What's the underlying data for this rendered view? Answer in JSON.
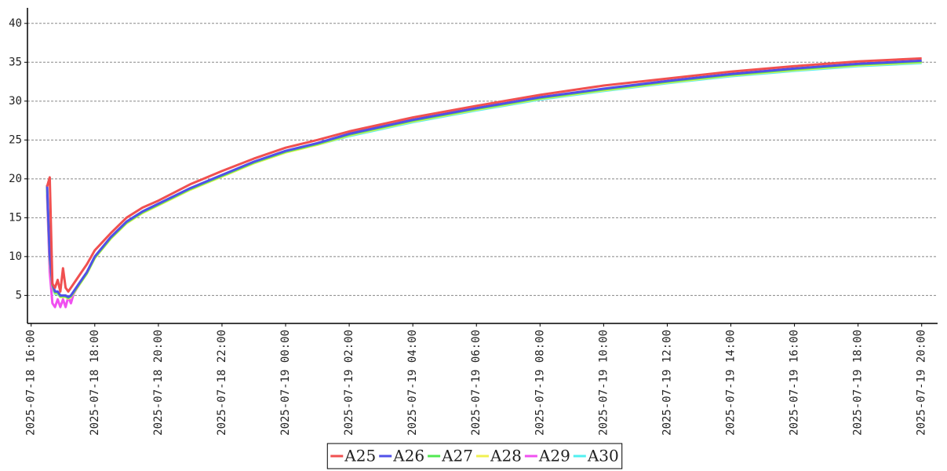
{
  "chart_data": {
    "type": "line",
    "x": [
      "2025-07-18 16:30",
      "2025-07-18 16:35",
      "2025-07-18 16:40",
      "2025-07-18 16:45",
      "2025-07-18 16:50",
      "2025-07-18 16:55",
      "2025-07-18 17:00",
      "2025-07-18 17:05",
      "2025-07-18 17:10",
      "2025-07-18 17:15",
      "2025-07-18 17:20",
      "2025-07-18 17:30",
      "2025-07-18 17:45",
      "2025-07-18 18:00",
      "2025-07-18 18:30",
      "2025-07-18 19:00",
      "2025-07-18 19:30",
      "2025-07-18 20:00",
      "2025-07-18 21:00",
      "2025-07-18 22:00",
      "2025-07-18 23:00",
      "2025-07-19 00:00",
      "2025-07-19 01:00",
      "2025-07-19 02:00",
      "2025-07-19 03:00",
      "2025-07-19 04:00",
      "2025-07-19 06:00",
      "2025-07-19 08:00",
      "2025-07-19 10:00",
      "2025-07-19 12:00",
      "2025-07-19 14:00",
      "2025-07-19 16:00",
      "2025-07-19 18:00",
      "2025-07-19 20:00"
    ],
    "series": [
      {
        "name": "A25",
        "color": "#f05050",
        "values": [
          19,
          20.2,
          6.5,
          6,
          7,
          5.5,
          8.5,
          6,
          5.5,
          6,
          6.5,
          7.5,
          9,
          10.8,
          13,
          15,
          16.3,
          17.2,
          19.3,
          21,
          22.6,
          24,
          25,
          26.1,
          27,
          27.9,
          29.4,
          30.8,
          32,
          32.9,
          33.8,
          34.5,
          35.1,
          35.5
        ]
      },
      {
        "name": "A26",
        "color": "#5050e8",
        "values": [
          19.2,
          10,
          6.5,
          5.5,
          5.5,
          5,
          5,
          5,
          4.8,
          5,
          5.5,
          6.5,
          8,
          10,
          12.5,
          14.5,
          15.8,
          16.8,
          18.8,
          20.5,
          22.2,
          23.6,
          24.6,
          25.8,
          26.7,
          27.6,
          29.1,
          30.5,
          31.6,
          32.6,
          33.5,
          34.2,
          34.8,
          35.2
        ]
      },
      {
        "name": "A27",
        "color": "#50e850",
        "values": [
          19,
          9.8,
          6.3,
          5.4,
          5.4,
          4.9,
          4.9,
          4.9,
          4.7,
          4.9,
          5.4,
          6.4,
          7.9,
          9.9,
          12.4,
          14.4,
          15.7,
          16.7,
          18.7,
          20.4,
          22.1,
          23.5,
          24.5,
          25.7,
          26.6,
          27.5,
          29,
          30.4,
          31.5,
          32.5,
          33.4,
          34.1,
          34.7,
          35.1
        ]
      },
      {
        "name": "A28",
        "color": "#f0f050",
        "values": [
          18.8,
          9.6,
          6.2,
          5.3,
          5.3,
          4.8,
          4.8,
          4.8,
          4.6,
          4.8,
          5.3,
          6.3,
          7.8,
          9.8,
          12.3,
          14.3,
          15.6,
          16.6,
          18.6,
          20.3,
          22,
          23.4,
          24.4,
          25.6,
          26.5,
          27.4,
          28.9,
          30.3,
          31.4,
          32.4,
          33.3,
          34,
          34.6,
          35
        ]
      },
      {
        "name": "A29",
        "color": "#f050f0",
        "values": [
          18,
          8,
          4,
          3.5,
          4.5,
          3.5,
          4.5,
          3.5,
          4.8,
          4,
          5.2,
          6.3,
          7.9,
          9.9,
          12.4,
          14.4,
          15.7,
          16.7,
          18.7,
          20.4,
          22.1,
          23.5,
          24.5,
          25.7,
          26.6,
          27.5,
          29,
          30.4,
          31.5,
          32.5,
          33.4,
          34.1,
          34.7,
          35.1
        ]
      },
      {
        "name": "A30",
        "color": "#50f0f0",
        "values": [
          18.5,
          9.5,
          6,
          5.2,
          5.2,
          4.8,
          4.8,
          4.8,
          4.6,
          4.8,
          5.3,
          6.3,
          7.8,
          9.8,
          12.3,
          14.3,
          15.6,
          16.6,
          18.6,
          20.3,
          22,
          23.4,
          24.4,
          25.5,
          26.4,
          27.3,
          28.8,
          30.2,
          31.3,
          32.3,
          33.2,
          33.9,
          34.5,
          34.9
        ]
      }
    ],
    "xlim": [
      "2025-07-18 15:53",
      "2025-07-19 20:30"
    ],
    "xticks": [
      "2025-07-18 16:00",
      "2025-07-18 18:00",
      "2025-07-18 20:00",
      "2025-07-18 22:00",
      "2025-07-19 00:00",
      "2025-07-19 02:00",
      "2025-07-19 04:00",
      "2025-07-19 06:00",
      "2025-07-19 08:00",
      "2025-07-19 10:00",
      "2025-07-19 12:00",
      "2025-07-19 14:00",
      "2025-07-19 16:00",
      "2025-07-19 18:00",
      "2025-07-19 20:00"
    ],
    "ylim": [
      1.4,
      42
    ],
    "yticks": [
      5,
      10,
      15,
      20,
      25,
      30,
      35,
      40
    ],
    "grid": true
  }
}
